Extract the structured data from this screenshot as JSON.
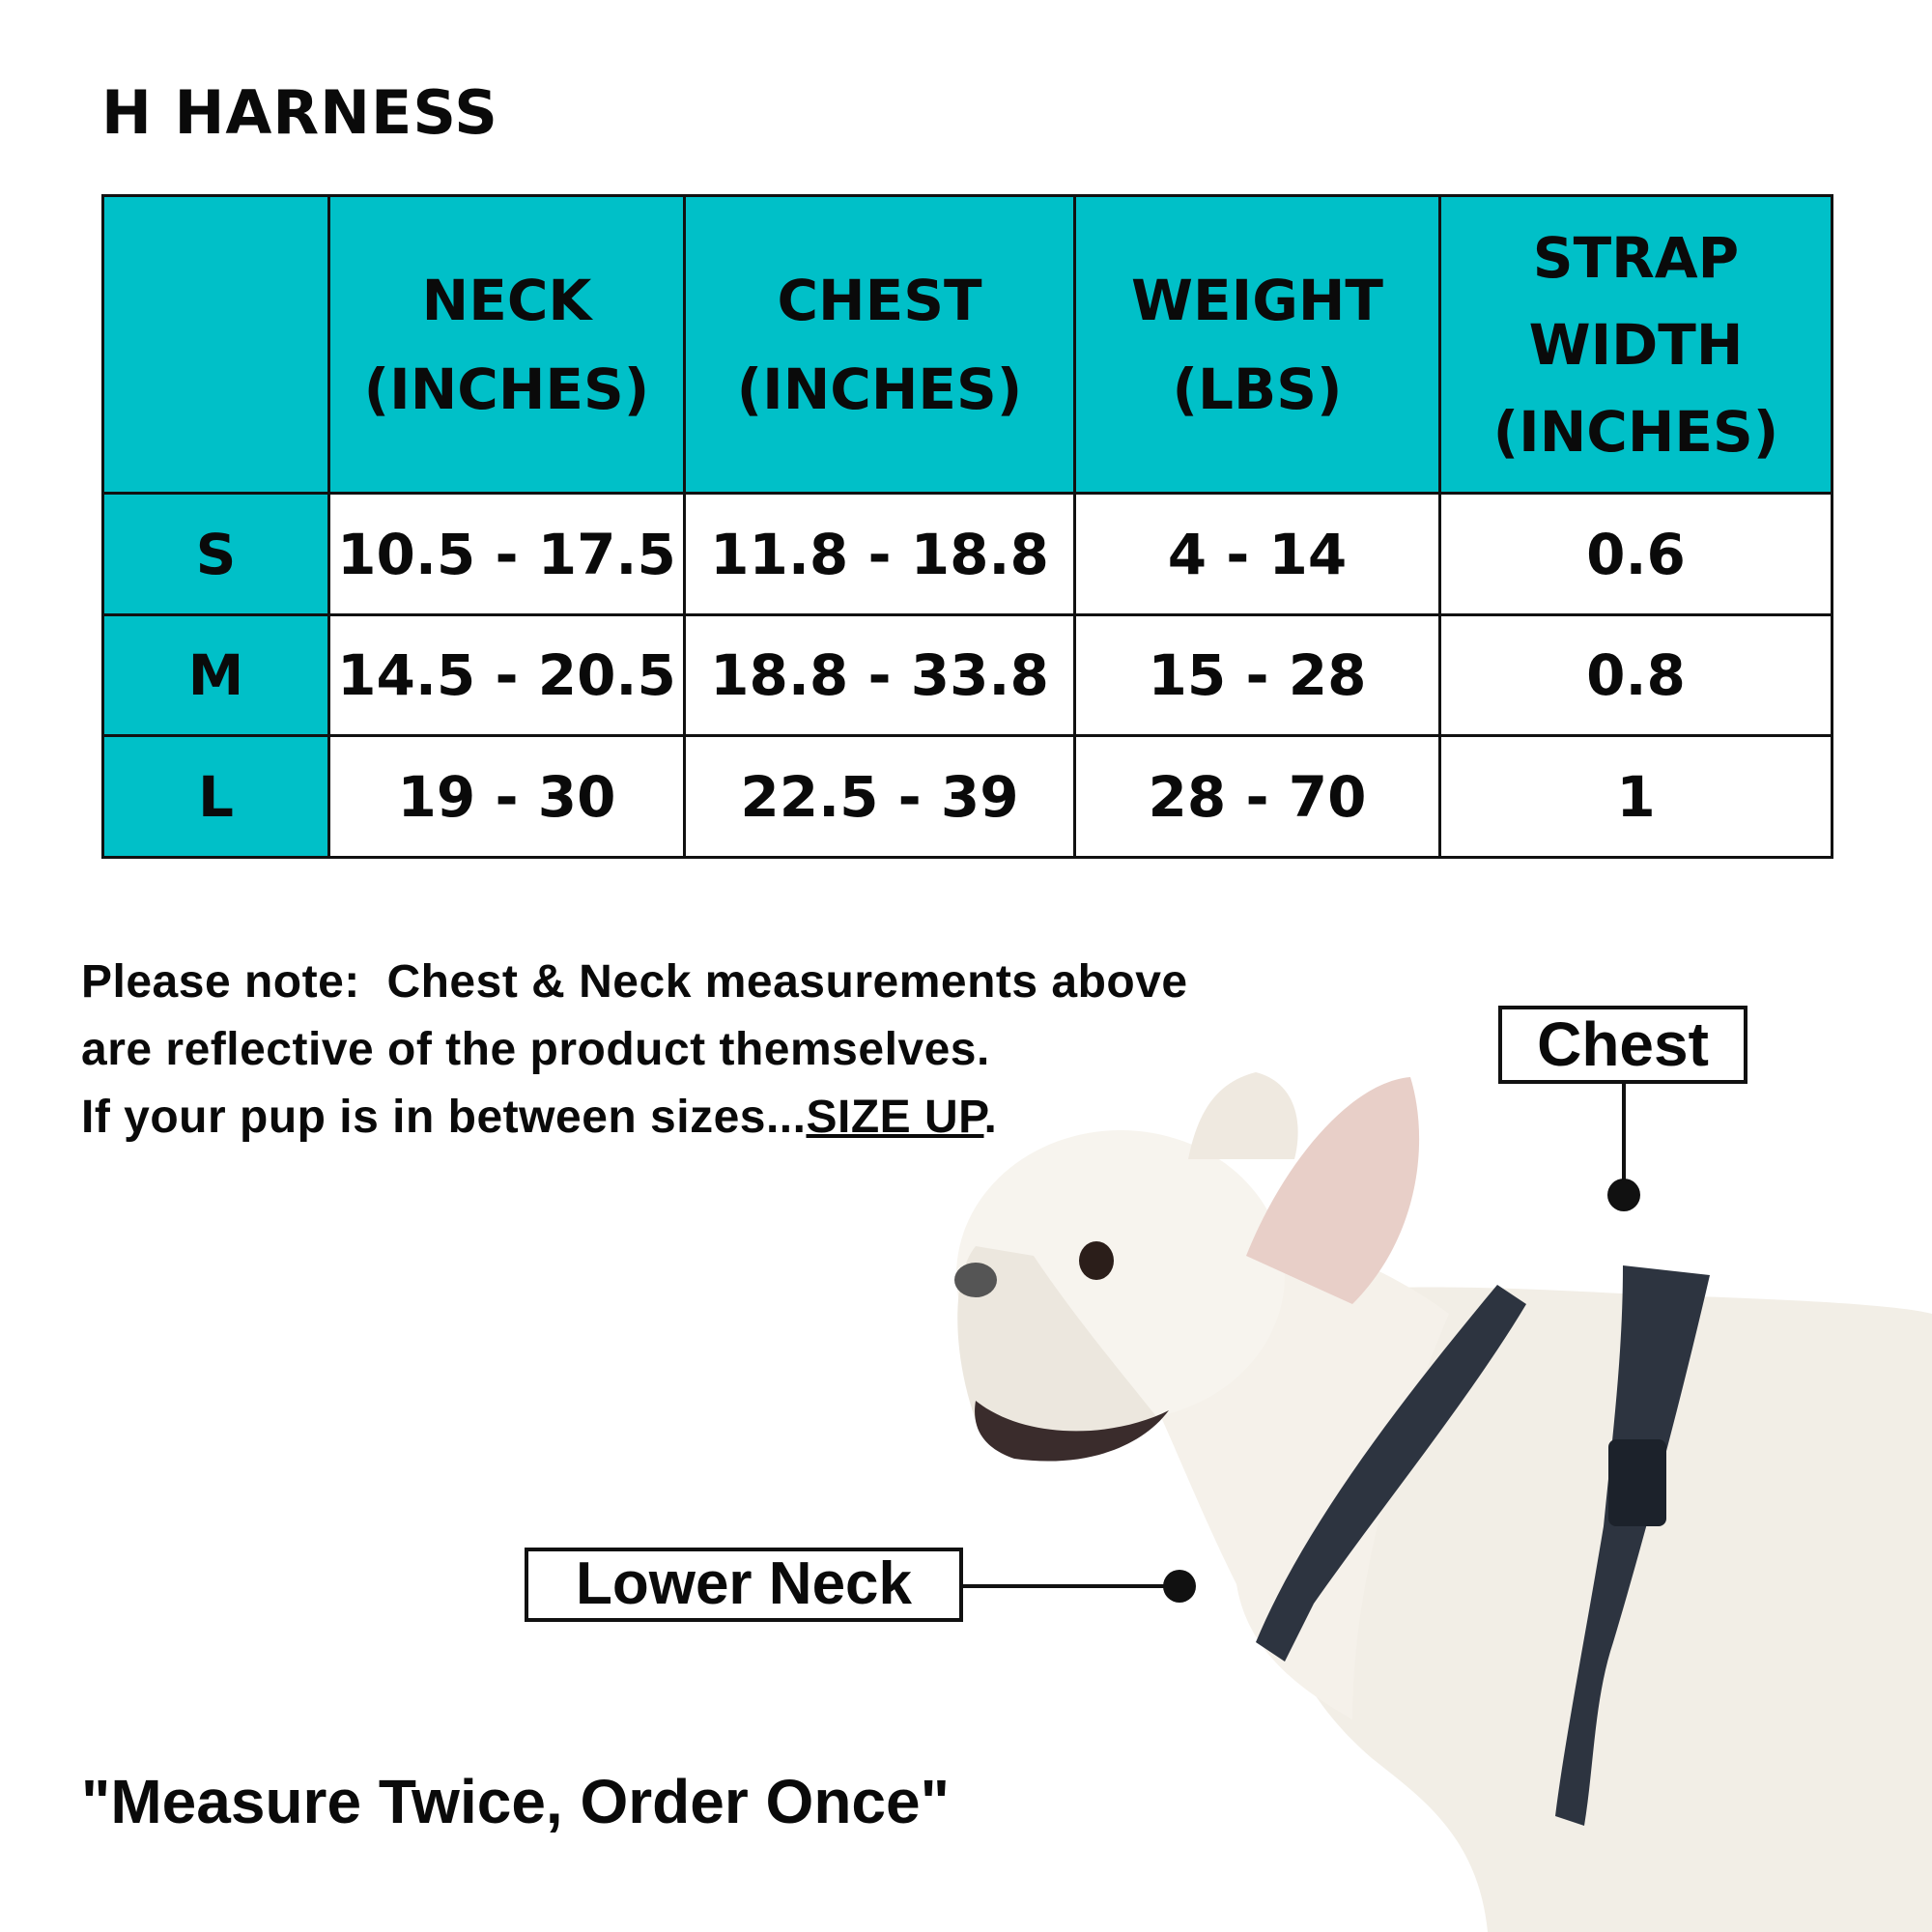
{
  "title": "H HARNESS",
  "colors": {
    "header_bg": "#00c0c8",
    "text": "#0a0a0a",
    "border": "#111111"
  },
  "table": {
    "headers": [
      "",
      "NECK (INCHES)",
      "CHEST (INCHES)",
      "WEIGHT (LBS)",
      "STRAP WIDTH (INCHES)"
    ],
    "rows": [
      {
        "size": "S",
        "neck": "10.5 - 17.5",
        "chest": "11.8 - 18.8",
        "weight": "4 - 14",
        "strap": "0.6"
      },
      {
        "size": "M",
        "neck": "14.5 - 20.5",
        "chest": "18.8 - 33.8",
        "weight": "15 - 28",
        "strap": "0.8"
      },
      {
        "size": "L",
        "neck": "19 - 30",
        "chest": "22.5 - 39",
        "weight": "28 - 70",
        "strap": "1"
      }
    ]
  },
  "note": {
    "line1": "Please note:  Chest & Neck measurements above",
    "line2": "are reflective of the product themselves.",
    "line3_prefix": "If your pup is in between sizes...",
    "line3_emphasis": "SIZE UP",
    "line3_suffix": "."
  },
  "labels": {
    "chest": "Chest",
    "lower_neck": "Lower Neck"
  },
  "image": {
    "subject": "dog-in-harness-photo"
  },
  "quote": "\"Measure Twice, Order Once\""
}
